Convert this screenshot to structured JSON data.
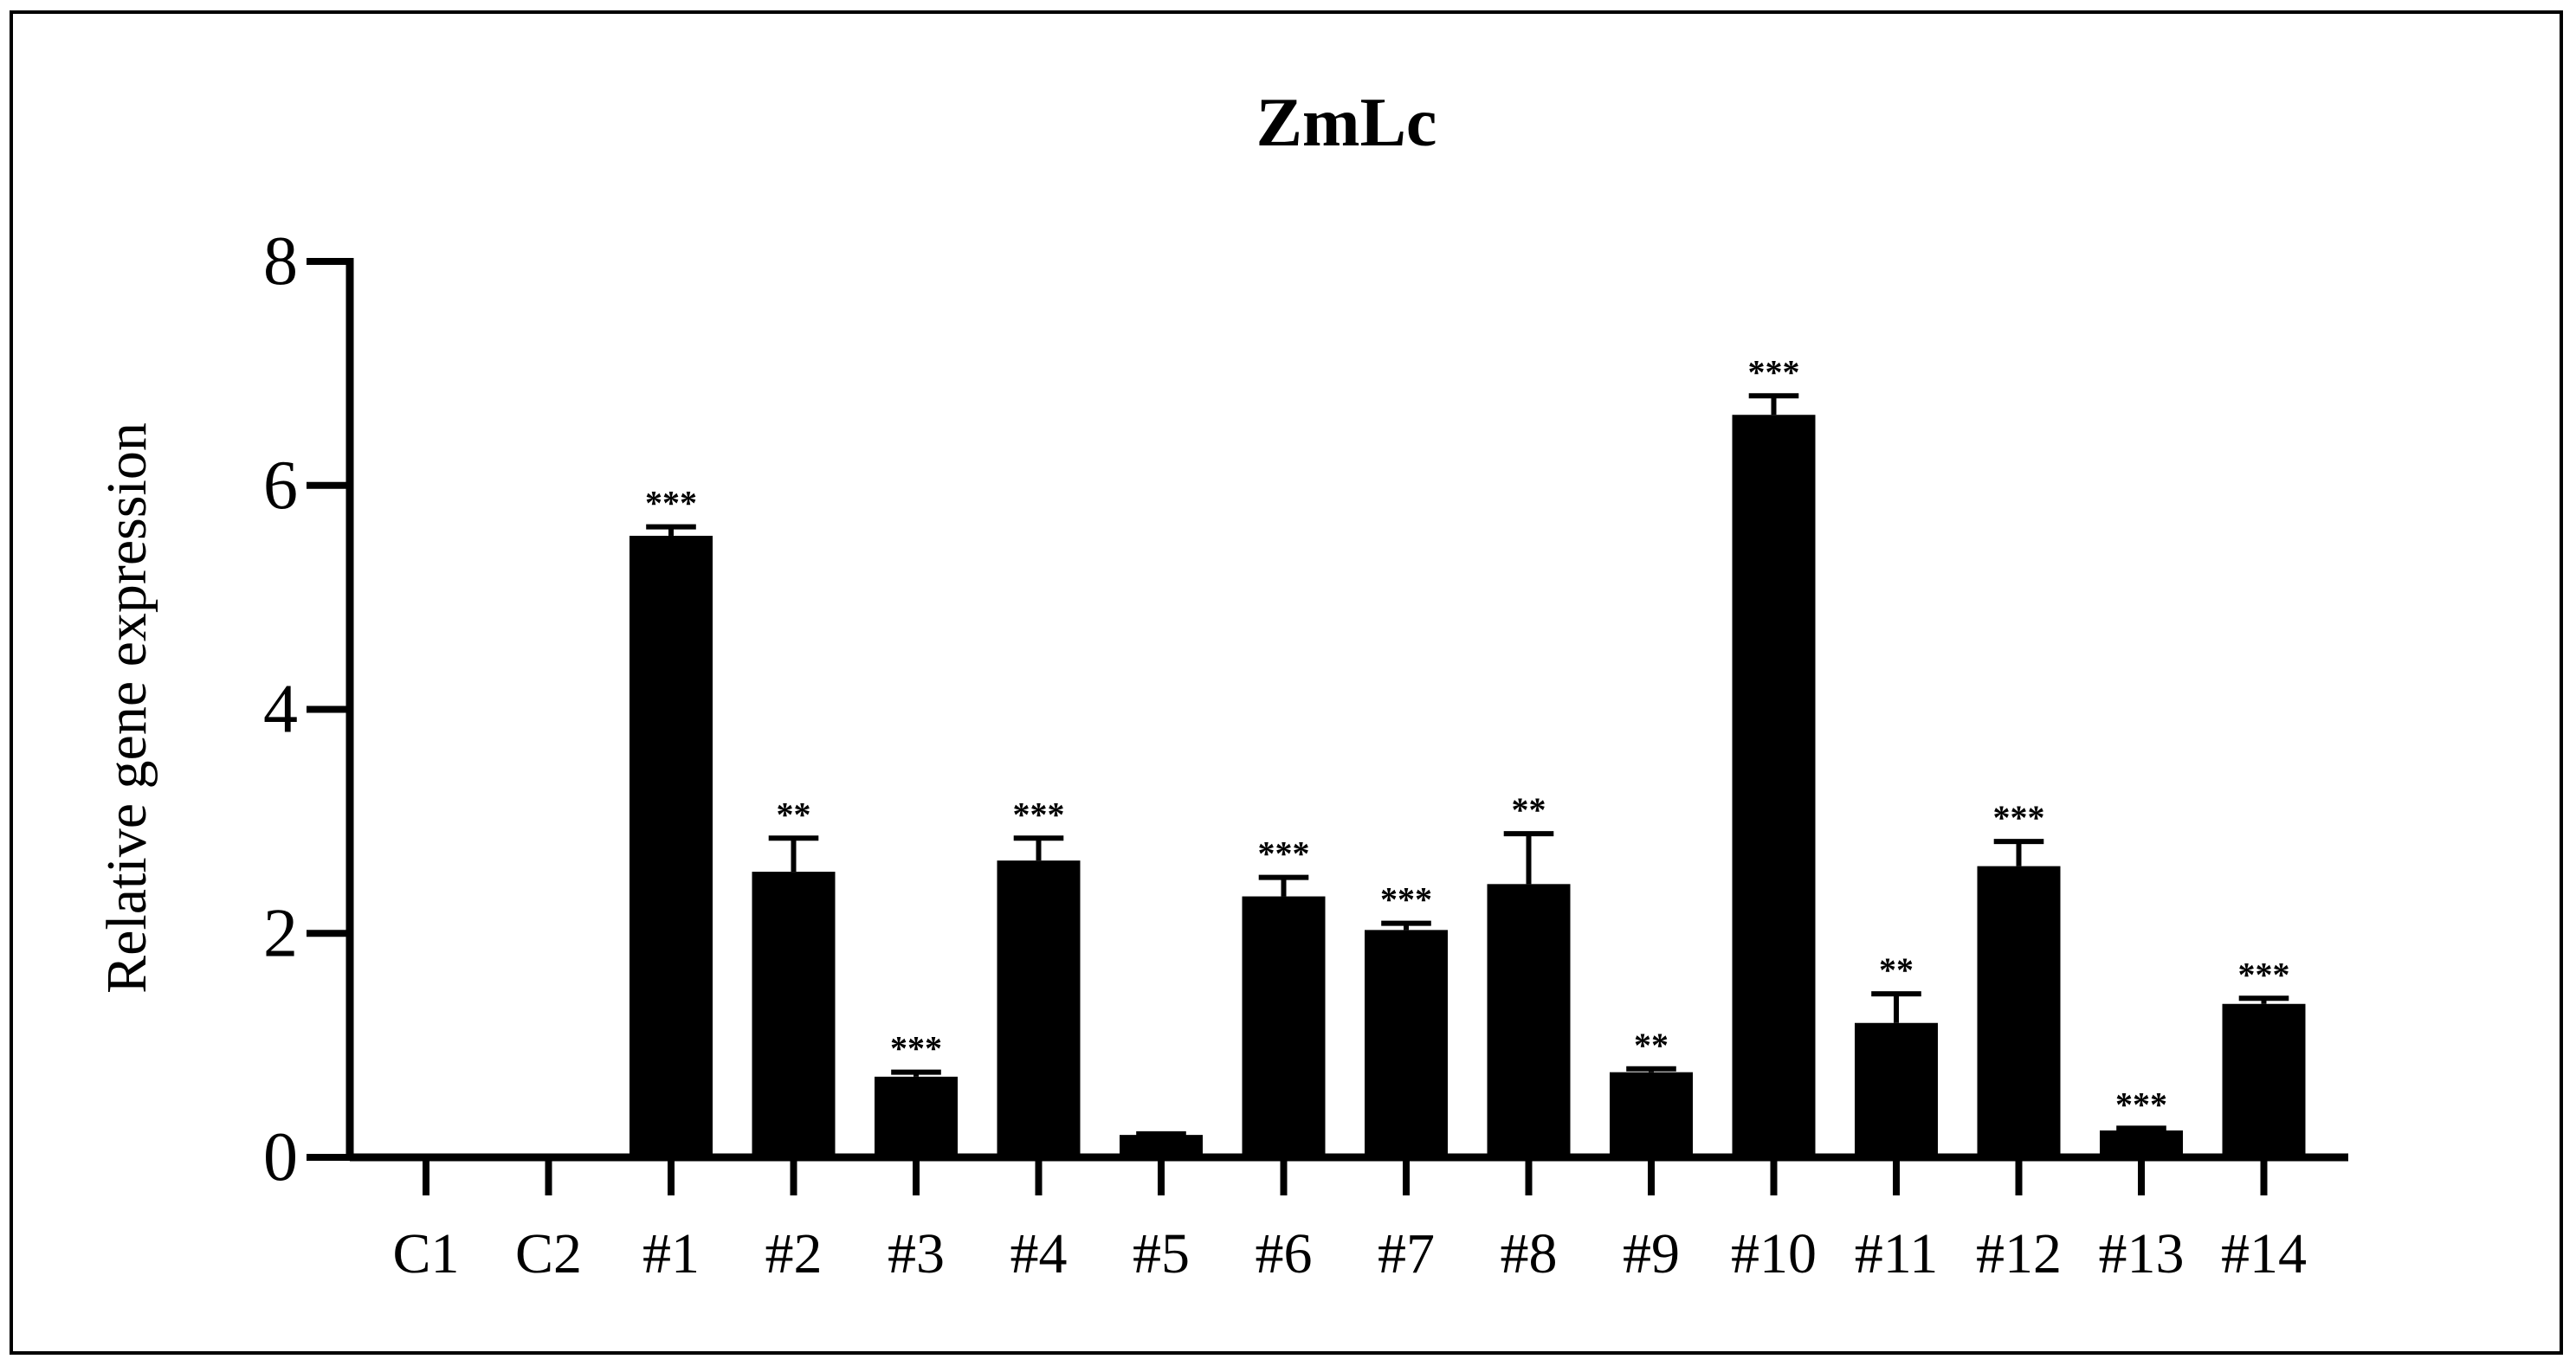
{
  "chart_data": {
    "type": "bar",
    "title": "ZmLc",
    "ylabel": "Relative gene expression",
    "xlabel": "",
    "ylim": [
      0,
      8
    ],
    "yticks": [
      0,
      2,
      4,
      6,
      8
    ],
    "grid": false,
    "legend": "none",
    "bar_color": "#000000",
    "categories": [
      "C1",
      "C2",
      "#1",
      "#2",
      "#3",
      "#4",
      "#5",
      "#6",
      "#7",
      "#8",
      "#9",
      "#10",
      "#11",
      "#12",
      "#13",
      "#14"
    ],
    "values": [
      0,
      0,
      5.55,
      2.55,
      0.72,
      2.65,
      0.2,
      2.33,
      2.03,
      2.44,
      0.76,
      6.63,
      1.2,
      2.6,
      0.24,
      1.37
    ],
    "errors": [
      0,
      0,
      0.08,
      0.3,
      0.04,
      0.2,
      0.01,
      0.17,
      0.06,
      0.45,
      0.03,
      0.17,
      0.26,
      0.22,
      0.02,
      0.05
    ],
    "significance": [
      "",
      "",
      "***",
      "**",
      "***",
      "***",
      "",
      "***",
      "***",
      "**",
      "**",
      "***",
      "**",
      "***",
      "***",
      "***"
    ]
  }
}
